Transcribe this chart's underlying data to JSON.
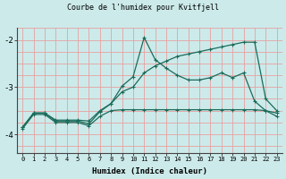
{
  "title": "Courbe de l'humidex pour Kvitfjell",
  "xlabel": "Humidex (Indice chaleur)",
  "background_color": "#cceaea",
  "grid_color": "#e8a0a0",
  "line_color": "#1a6b5a",
  "xlim": [
    -0.5,
    23.5
  ],
  "ylim": [
    -4.4,
    -1.75
  ],
  "yticks": [
    -4,
    -3,
    -2
  ],
  "xtick_labels": [
    "0",
    "1",
    "2",
    "3",
    "4",
    "5",
    "6",
    "7",
    "8",
    "9",
    "10",
    "11",
    "12",
    "13",
    "14",
    "15",
    "16",
    "17",
    "18",
    "19",
    "20",
    "21",
    "22",
    "23"
  ],
  "main_x": [
    0,
    1,
    2,
    3,
    4,
    5,
    6,
    7,
    8,
    9,
    10,
    11,
    12,
    13,
    14,
    15,
    16,
    17,
    18,
    19,
    20,
    21,
    22,
    23
  ],
  "main_y": [
    -3.85,
    -3.55,
    -3.55,
    -3.72,
    -3.72,
    -3.72,
    -3.78,
    -3.52,
    -3.35,
    -2.98,
    -2.78,
    -1.95,
    -2.42,
    -2.6,
    -2.75,
    -2.85,
    -2.85,
    -2.8,
    -2.7,
    -2.8,
    -2.7,
    -3.3,
    -3.5,
    -3.55
  ],
  "mid_x": [
    0,
    1,
    2,
    3,
    4,
    5,
    6,
    7,
    8,
    9,
    10,
    11,
    12,
    13,
    14,
    15,
    16,
    17,
    18,
    19,
    20,
    21,
    22,
    23
  ],
  "mid_y": [
    -3.85,
    -3.55,
    -3.55,
    -3.7,
    -3.7,
    -3.7,
    -3.72,
    -3.5,
    -3.35,
    -3.1,
    -3.0,
    -2.7,
    -2.55,
    -2.45,
    -2.35,
    -2.3,
    -2.25,
    -2.2,
    -2.15,
    -2.1,
    -2.05,
    -2.05,
    -3.25,
    -3.5
  ],
  "bot_x": [
    0,
    1,
    2,
    3,
    4,
    5,
    6,
    7,
    8,
    9,
    10,
    11,
    12,
    13,
    14,
    15,
    16,
    17,
    18,
    19,
    20,
    21,
    22,
    23
  ],
  "bot_y": [
    -3.88,
    -3.58,
    -3.58,
    -3.75,
    -3.75,
    -3.75,
    -3.82,
    -3.62,
    -3.5,
    -3.48,
    -3.48,
    -3.48,
    -3.48,
    -3.48,
    -3.48,
    -3.48,
    -3.48,
    -3.48,
    -3.48,
    -3.48,
    -3.48,
    -3.48,
    -3.5,
    -3.62
  ]
}
